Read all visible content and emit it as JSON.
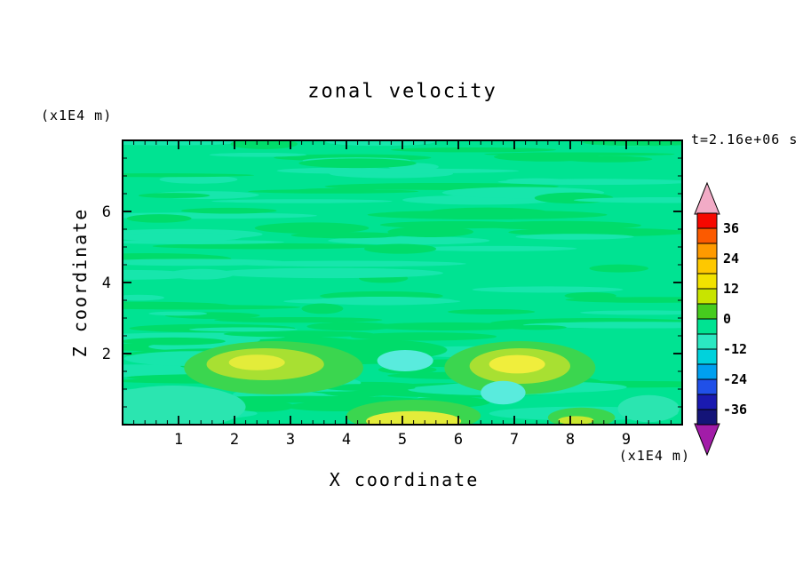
{
  "title": "zonal velocity",
  "timestamp": "t=2.16e+06 s",
  "axes": {
    "x": {
      "label": "X coordinate",
      "units": "(x1E4 m)",
      "range": [
        0,
        10
      ],
      "major_ticks": [
        1,
        2,
        3,
        4,
        5,
        6,
        7,
        8,
        9
      ],
      "minor_step": 0.2
    },
    "y": {
      "label": "Z coordinate",
      "units": "(x1E4 m)",
      "range": [
        0,
        8
      ],
      "major_ticks": [
        2,
        4,
        6
      ],
      "minor_step": 0.5
    }
  },
  "colorbar": {
    "boundary_max": 42,
    "boundary_min": -42,
    "step": 6,
    "labels": [
      "36",
      "24",
      "12",
      "0",
      "-12",
      "-24",
      "-36"
    ],
    "label_values": [
      36,
      24,
      12,
      0,
      -12,
      -24,
      -36
    ],
    "segment_colors_top_to_bottom": [
      "#F50800",
      "#FB5A00",
      "#FE9A00",
      "#FEC800",
      "#F2E200",
      "#C8E400",
      "#46CC1E",
      "#00E392",
      "#2BE8C2",
      "#00D2DC",
      "#00A0F0",
      "#2050E8",
      "#1A1AB0",
      "#141478"
    ],
    "arrow_top_color": "#F2ABC6",
    "arrow_bottom_color": "#A21CA8"
  },
  "chart_data": {
    "type": "heatmap",
    "title": "zonal velocity",
    "xlabel": "X coordinate (x1E4 m)",
    "ylabel": "Z coordinate (x1E4 m)",
    "xlim": [
      0,
      10
    ],
    "ylim": [
      0,
      8
    ],
    "time_label": "t=2.16e+06 s",
    "value_levels": {
      "min": -42,
      "max": 42,
      "step": 6
    },
    "description": "Contour field mostly in the -6..0 band (spring green) with thin horizontal streaks alternating into adjacent 0..6 (green) and -12..-6 (teal) bands; positive maxima ~12-15 in yellow blobs near the bottom and small negative patches ~-9 (cyan).",
    "field": {
      "base_color": "#00E392",
      "streak_colors": [
        "#00DC6A",
        "#17E6AC"
      ],
      "streaks": {
        "seed": 11,
        "count_upper": 95,
        "count_lower": 32
      }
    },
    "features": [
      {
        "name": "teal-patch-bottom-left",
        "x": 0.9,
        "z": 0.5,
        "rx": 1.3,
        "rz": 0.6,
        "value": -8,
        "color": "#2BE5B0"
      },
      {
        "name": "wide-green-mid",
        "x": 4.4,
        "z": 2.1,
        "rx": 1.4,
        "rz": 0.3,
        "value": 2,
        "color": "#00DC6A"
      },
      {
        "name": "green-halo-a",
        "x": 2.7,
        "z": 1.6,
        "rx": 1.6,
        "rz": 0.75,
        "value": 3,
        "color": "#3BD64F"
      },
      {
        "name": "yellowgreen-a",
        "x": 2.55,
        "z": 1.7,
        "rx": 1.05,
        "rz": 0.45,
        "value": 9,
        "color": "#A8E032"
      },
      {
        "name": "yellow-core-a",
        "x": 2.4,
        "z": 1.75,
        "rx": 0.5,
        "rz": 0.22,
        "value": 13,
        "color": "#E3EC3A"
      },
      {
        "name": "green-halo-b",
        "x": 5.2,
        "z": 0.25,
        "rx": 1.2,
        "rz": 0.45,
        "value": 3,
        "color": "#3BD64F"
      },
      {
        "name": "yellow-b",
        "x": 5.2,
        "z": 0.1,
        "rx": 0.85,
        "rz": 0.28,
        "value": 13,
        "color": "#E3EC3A"
      },
      {
        "name": "green-halo-c",
        "x": 7.1,
        "z": 1.6,
        "rx": 1.35,
        "rz": 0.75,
        "value": 3,
        "color": "#3BD64F"
      },
      {
        "name": "yellowgreen-c",
        "x": 7.1,
        "z": 1.65,
        "rx": 0.9,
        "rz": 0.5,
        "value": 9,
        "color": "#A8E032"
      },
      {
        "name": "yellow-core-c",
        "x": 7.05,
        "z": 1.7,
        "rx": 0.5,
        "rz": 0.26,
        "value": 14,
        "color": "#F0EE3C"
      },
      {
        "name": "green-patch-d",
        "x": 8.2,
        "z": 0.2,
        "rx": 0.6,
        "rz": 0.28,
        "value": 4,
        "color": "#3BD64F"
      },
      {
        "name": "yellow-dot-d",
        "x": 8.1,
        "z": 0.12,
        "rx": 0.32,
        "rz": 0.12,
        "value": 8,
        "color": "#C9E72E"
      },
      {
        "name": "cyan-patch-1",
        "x": 5.05,
        "z": 1.8,
        "rx": 0.5,
        "rz": 0.3,
        "value": -9,
        "color": "#59EBDD"
      },
      {
        "name": "cyan-patch-2",
        "x": 6.8,
        "z": 0.9,
        "rx": 0.4,
        "rz": 0.33,
        "value": -9,
        "color": "#59EBDD"
      },
      {
        "name": "teal-patch-right",
        "x": 9.4,
        "z": 0.45,
        "rx": 0.55,
        "rz": 0.38,
        "value": -8,
        "color": "#2BE5B0"
      }
    ]
  }
}
